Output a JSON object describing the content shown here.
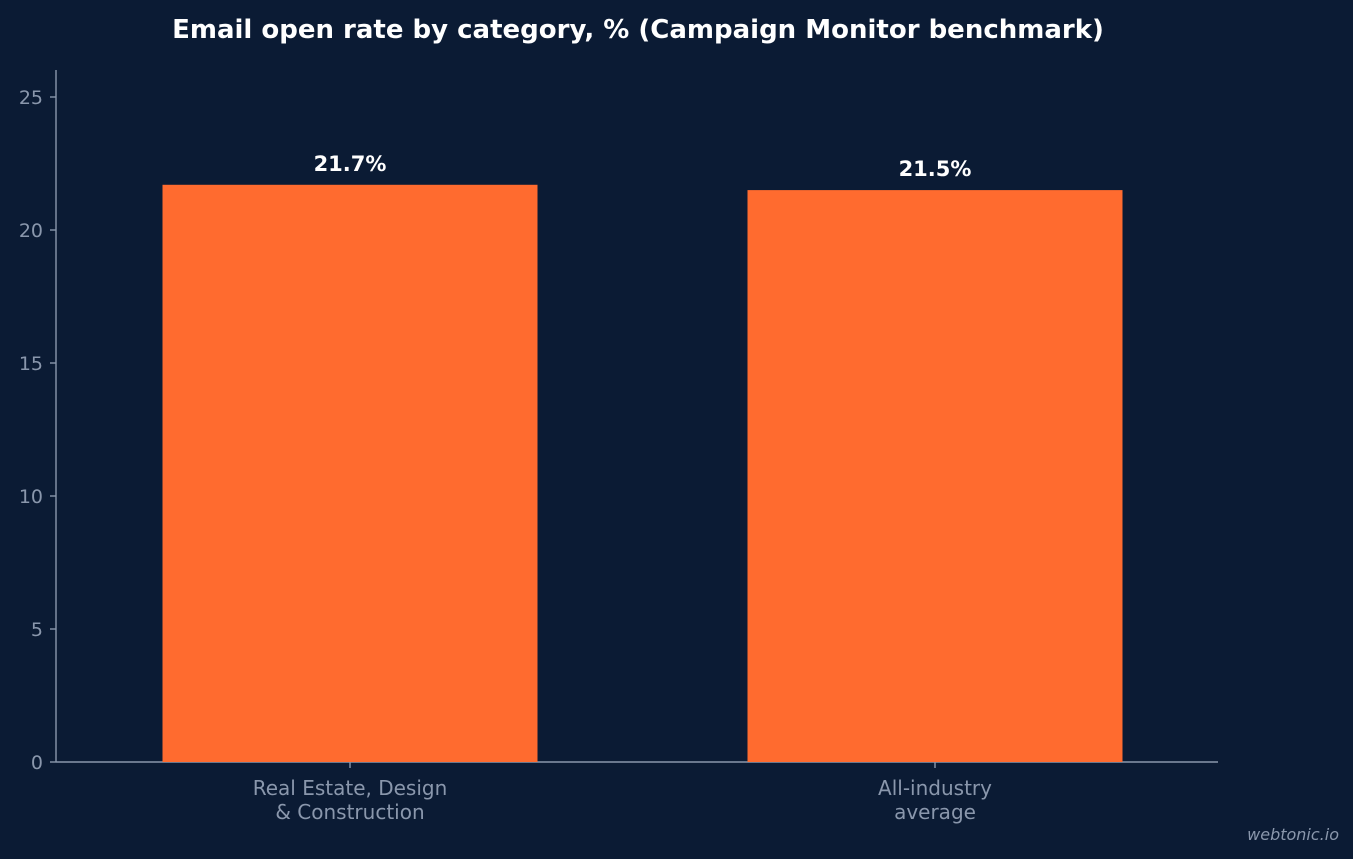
{
  "colors": {
    "background": "#0b1b34",
    "bar": "#ff6b2f",
    "title": "#ffffff",
    "axis": "#8a97ac",
    "tick_label": "#8a97ac",
    "value_label": "#ffffff",
    "watermark": "#8a97ac"
  },
  "watermark": "webtonic.io",
  "chart_data": {
    "type": "bar",
    "title": "Email open rate by category, % (Campaign Monitor benchmark)",
    "xlabel": "",
    "ylabel": "",
    "categories": [
      [
        "Real Estate, Design",
        "& Construction"
      ],
      [
        "All-industry",
        "average"
      ]
    ],
    "values": [
      21.7,
      21.5
    ],
    "value_labels": [
      "21.7%",
      "21.5%"
    ],
    "ylim": [
      0,
      26
    ],
    "yticks": [
      0,
      5,
      10,
      15,
      20,
      25
    ],
    "grid": false,
    "legend": "none"
  }
}
